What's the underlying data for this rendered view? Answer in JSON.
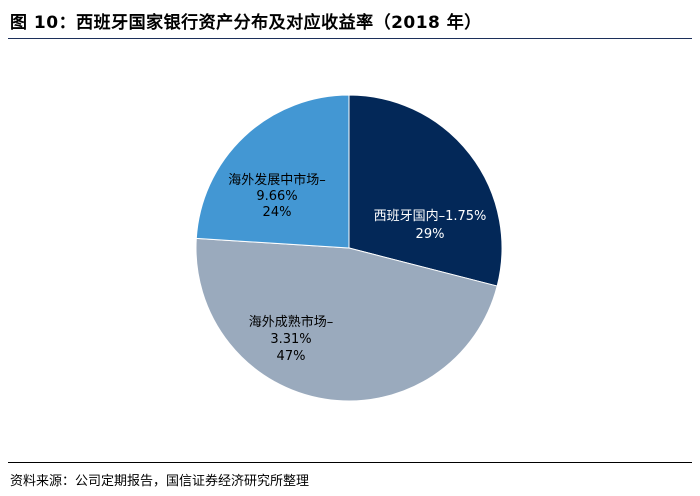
{
  "figure": {
    "title": "图 10：西班牙国家银行资产分布及对应收益率（2018 年）",
    "source": "资料来源：公司定期报告，国信证券经济研究所整理"
  },
  "chart_data": {
    "type": "pie",
    "title": "西班牙国家银行资产分布及对应收益率（2018 年）",
    "slices": [
      {
        "name": "西班牙国内",
        "yield": "1.75%",
        "share": "29%",
        "value": 29,
        "color": "#032858",
        "text_color": "#ffffff"
      },
      {
        "name": "海外成熟市场",
        "yield": "3.31%",
        "share": "47%",
        "value": 47,
        "color": "#9aaabd",
        "text_color": "#000000"
      },
      {
        "name": "海外发展中市场",
        "yield": "9.66%",
        "share": "24%",
        "value": 24,
        "color": "#4397d3",
        "text_color": "#000000"
      }
    ],
    "start": "12 o'clock",
    "direction": "clockwise"
  }
}
